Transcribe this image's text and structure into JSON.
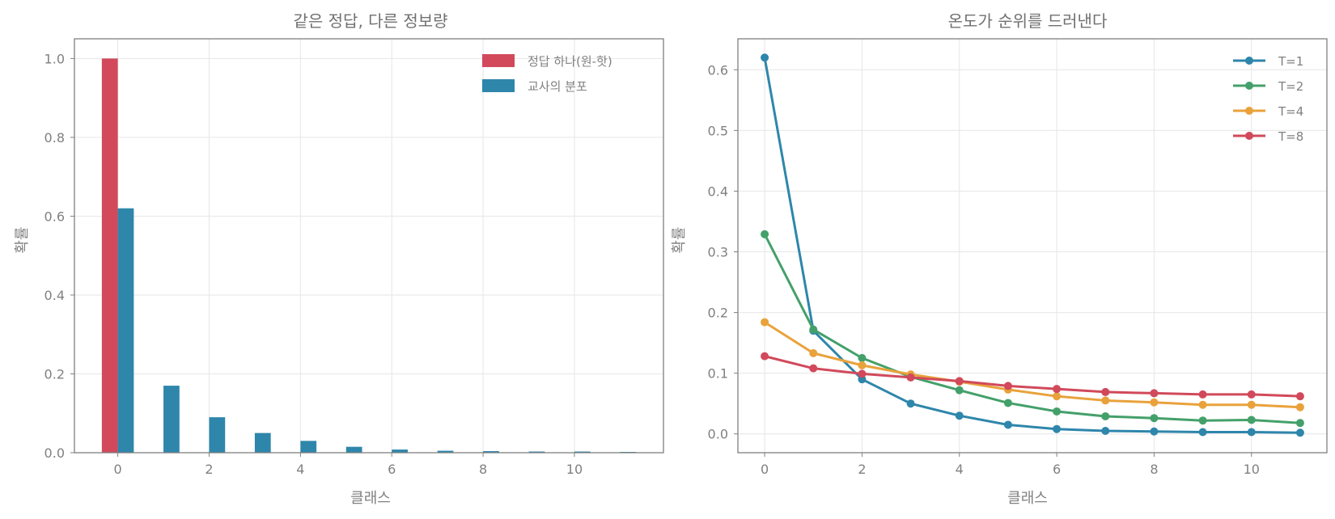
{
  "chart_data": [
    {
      "type": "bar",
      "title": "같은 정답, 다른 정보량",
      "xlabel": "클래스",
      "ylabel": "확률",
      "xlim": [
        -0.95,
        11.95
      ],
      "ylim": [
        0.0,
        1.05
      ],
      "xticks": [
        0,
        2,
        4,
        6,
        8,
        10
      ],
      "yticks": [
        0.0,
        0.2,
        0.4,
        0.6,
        0.8,
        1.0
      ],
      "grid": true,
      "legend_position": "top-right",
      "categories": [
        0,
        1,
        2,
        3,
        4,
        5,
        6,
        7,
        8,
        9,
        10,
        11
      ],
      "series": [
        {
          "name": "정답 하나(원-핫)",
          "color": "#d1495b",
          "values": [
            1.0,
            0,
            0,
            0,
            0,
            0,
            0,
            0,
            0,
            0,
            0,
            0
          ]
        },
        {
          "name": "교사의 분포",
          "color": "#2e86ab",
          "values": [
            0.62,
            0.17,
            0.09,
            0.05,
            0.03,
            0.015,
            0.008,
            0.005,
            0.004,
            0.003,
            0.003,
            0.002
          ]
        }
      ]
    },
    {
      "type": "line",
      "title": "온도가 순위를 드러낸다",
      "xlabel": "클래스",
      "ylabel": "확률",
      "xlim": [
        -0.55,
        11.55
      ],
      "ylim": [
        -0.031,
        0.651
      ],
      "xticks": [
        0,
        2,
        4,
        6,
        8,
        10
      ],
      "yticks": [
        0.0,
        0.1,
        0.2,
        0.3,
        0.4,
        0.5,
        0.6
      ],
      "grid": true,
      "legend_position": "top-right",
      "x": [
        0,
        1,
        2,
        3,
        4,
        5,
        6,
        7,
        8,
        9,
        10,
        11
      ],
      "series": [
        {
          "name": "T=1",
          "color": "#2e86ab",
          "values": [
            0.62,
            0.17,
            0.09,
            0.05,
            0.03,
            0.015,
            0.008,
            0.005,
            0.004,
            0.003,
            0.003,
            0.002
          ]
        },
        {
          "name": "T=2",
          "color": "#44a06a",
          "values": [
            0.329,
            0.172,
            0.125,
            0.094,
            0.072,
            0.051,
            0.037,
            0.029,
            0.026,
            0.022,
            0.023,
            0.018
          ]
        },
        {
          "name": "T=4",
          "color": "#e9a23b",
          "values": [
            0.184,
            0.133,
            0.113,
            0.098,
            0.086,
            0.073,
            0.062,
            0.055,
            0.052,
            0.048,
            0.048,
            0.044
          ]
        },
        {
          "name": "T=8",
          "color": "#d1495b",
          "values": [
            0.128,
            0.108,
            0.099,
            0.093,
            0.087,
            0.079,
            0.074,
            0.069,
            0.067,
            0.065,
            0.065,
            0.062
          ]
        }
      ]
    }
  ]
}
